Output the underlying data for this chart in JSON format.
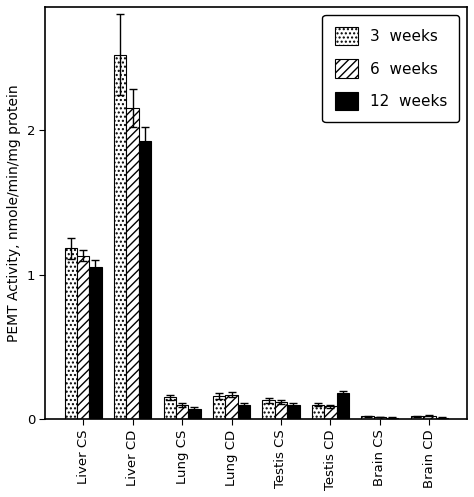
{
  "categories": [
    "Liver CS",
    "Liver CD",
    "Lung CS",
    "Lung CD",
    "Testis CS",
    "Testis CD",
    "Brain CS",
    "Brain CD"
  ],
  "series": {
    "3 weeks": [
      1.18,
      2.52,
      0.15,
      0.16,
      0.13,
      0.1,
      0.02,
      0.02
    ],
    "6 weeks": [
      1.13,
      2.15,
      0.1,
      0.17,
      0.12,
      0.09,
      0.015,
      0.025
    ],
    "12 weeks": [
      1.05,
      1.92,
      0.07,
      0.1,
      0.1,
      0.18,
      0.01,
      0.01
    ]
  },
  "errors": {
    "3 weeks": [
      0.07,
      0.28,
      0.02,
      0.02,
      0.015,
      0.012,
      0.003,
      0.003
    ],
    "6 weeks": [
      0.04,
      0.13,
      0.015,
      0.02,
      0.015,
      0.01,
      0.003,
      0.003
    ],
    "12 weeks": [
      0.05,
      0.1,
      0.012,
      0.012,
      0.012,
      0.018,
      0.002,
      0.002
    ]
  },
  "ylabel": "PEMT Activity, nmole/min/mg protein",
  "ylim": [
    0,
    2.85
  ],
  "yticks": [
    0,
    1,
    2
  ],
  "bar_width": 0.25,
  "hatches": [
    "....",
    "////",
    ""
  ],
  "face_colors": [
    "white",
    "white",
    "black"
  ],
  "edge_colors": [
    "black",
    "black",
    "black"
  ],
  "legend_labels": [
    "3  weeks",
    "6  weeks",
    "12  weeks"
  ],
  "legend_fontsize": 11,
  "tick_fontsize": 9.5,
  "label_fontsize": 10,
  "background_color": "#ffffff"
}
